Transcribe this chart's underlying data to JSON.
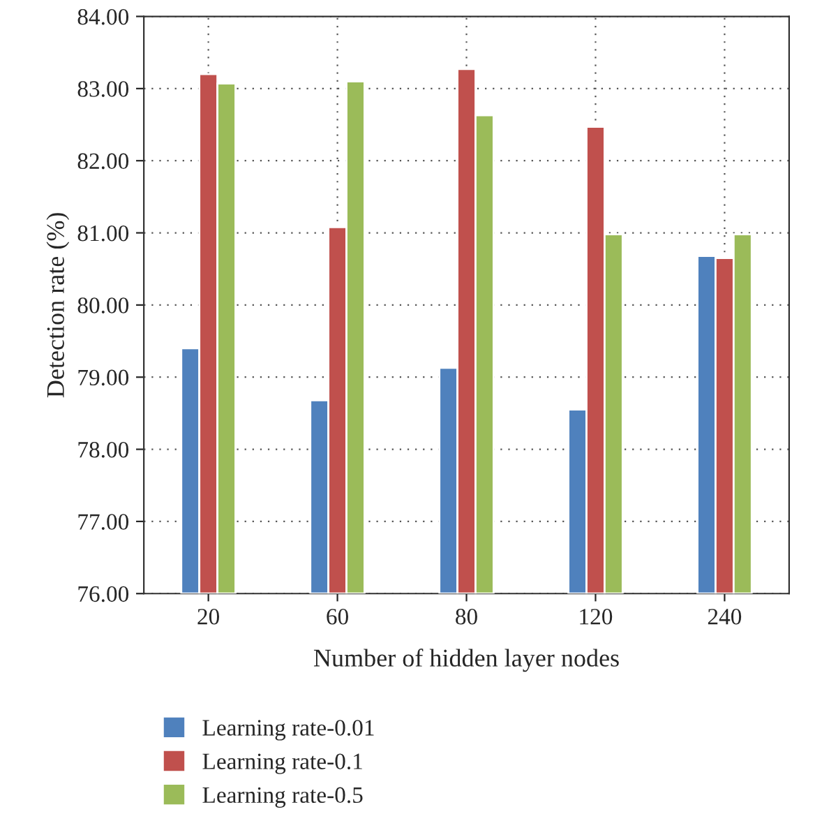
{
  "chart_data": {
    "type": "bar",
    "xlabel": "Number of hidden layer nodes",
    "ylabel": "Detection rate (%)",
    "categories": [
      "20",
      "60",
      "80",
      "120",
      "240"
    ],
    "series": [
      {
        "name": "Learning rate-0.01",
        "color": "#4f81bd",
        "values": [
          79.4,
          78.68,
          79.13,
          78.55,
          80.68
        ]
      },
      {
        "name": "Learning rate-0.1",
        "color": "#c0504d",
        "values": [
          83.2,
          81.08,
          83.27,
          82.47,
          80.65
        ]
      },
      {
        "name": "Learning rate-0.5",
        "color": "#9bbb59",
        "values": [
          83.07,
          83.1,
          82.63,
          80.98,
          80.98
        ]
      }
    ],
    "ylim": [
      76,
      84
    ],
    "yticks": [
      {
        "value": 76,
        "label": "76.00"
      },
      {
        "value": 77,
        "label": "77.00"
      },
      {
        "value": 78,
        "label": "78.00"
      },
      {
        "value": 79,
        "label": "79.00"
      },
      {
        "value": 80,
        "label": "80.00"
      },
      {
        "value": 81,
        "label": "81.00"
      },
      {
        "value": 82,
        "label": "82.00"
      },
      {
        "value": 83,
        "label": "83.00"
      },
      {
        "value": 84,
        "label": "84.00"
      }
    ],
    "grid": true,
    "legend": "bottom"
  }
}
